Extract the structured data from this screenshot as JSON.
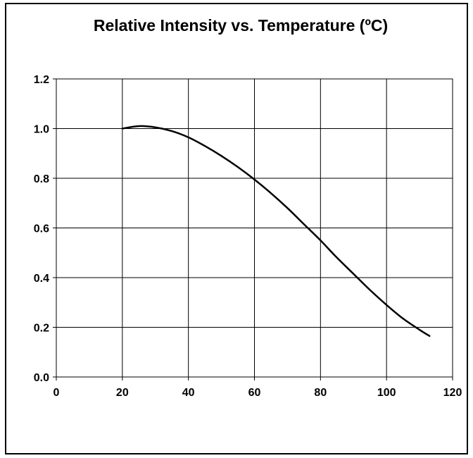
{
  "chart_data": {
    "type": "line",
    "title": "Relative Intensity vs. Temperature (ºC)",
    "xlabel": "",
    "ylabel": "",
    "xlim": [
      0,
      120
    ],
    "ylim": [
      0.0,
      1.2
    ],
    "x_ticks": [
      "0",
      "20",
      "40",
      "60",
      "80",
      "100",
      "120"
    ],
    "y_ticks": [
      "0.0",
      "0.2",
      "0.4",
      "0.6",
      "0.8",
      "1.0",
      "1.2"
    ],
    "grid": true,
    "legend": "none",
    "series": [
      {
        "color": "#000000",
        "x": [
          20,
          25,
          30,
          35,
          40,
          45,
          50,
          55,
          60,
          65,
          70,
          75,
          80,
          85,
          90,
          95,
          100,
          105,
          110,
          113
        ],
        "y": [
          1.0,
          1.01,
          1.005,
          0.99,
          0.965,
          0.93,
          0.89,
          0.845,
          0.795,
          0.74,
          0.68,
          0.615,
          0.55,
          0.48,
          0.415,
          0.35,
          0.29,
          0.235,
          0.19,
          0.165
        ]
      }
    ]
  }
}
